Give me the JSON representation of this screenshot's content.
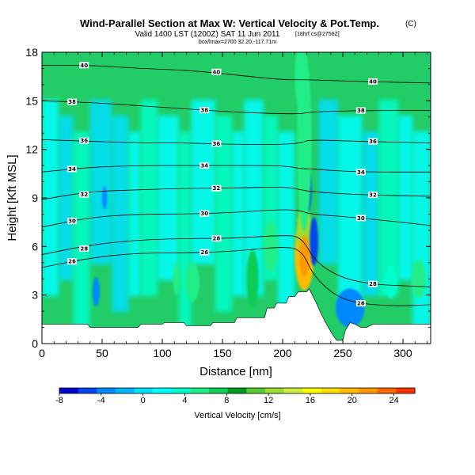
{
  "chart_data": {
    "type": "heatmap",
    "title": "Wind-Parallel Section at Max W: Vertical Velocity & Pot.Temp.",
    "title_mark": "(C)",
    "subtitle": "Valid 1400 LST (1200Z) SAT 11 Jun 2011",
    "subtitle_mark": "[18hrf cs@2756Z]",
    "subtitle2": "box/lmax=2700 32.20,-117.71m",
    "xlabel": "Distance [nm]",
    "ylabel": "Height [Kft MSL]",
    "xlim": [
      0,
      323
    ],
    "ylim": [
      0,
      18
    ],
    "xticks": [
      0,
      50,
      100,
      150,
      200,
      250,
      300
    ],
    "yticks": [
      0,
      3,
      6,
      9,
      12,
      15,
      18
    ],
    "colorbar": {
      "label": "Vertical Velocity [cm/s]",
      "min": -8,
      "max": 26,
      "step": 2,
      "ticks": [
        -8,
        -4,
        0,
        4,
        8,
        12,
        16,
        20,
        24
      ],
      "colors": [
        "#0000cc",
        "#0044ee",
        "#0088ff",
        "#00b4ff",
        "#00e0ff",
        "#00ffff",
        "#00ffcc",
        "#22ee88",
        "#11cc55",
        "#009922",
        "#55cc33",
        "#99dd33",
        "#ccee44",
        "#ffff00",
        "#ffdd00",
        "#ffbb00",
        "#ff9900",
        "#ff6600",
        "#ff3300"
      ]
    },
    "theta_contours": [
      {
        "value": 26,
        "points": [
          [
            0,
            4.7
          ],
          [
            40,
            5.3
          ],
          [
            80,
            5.6
          ],
          [
            120,
            5.6
          ],
          [
            160,
            5.7
          ],
          [
            200,
            6.0
          ],
          [
            216,
            5.8
          ],
          [
            226,
            4.1
          ],
          [
            250,
            2.6
          ],
          [
            290,
            2.3
          ],
          [
            323,
            2.4
          ]
        ]
      },
      {
        "value": 28,
        "points": [
          [
            0,
            5.5
          ],
          [
            40,
            6.1
          ],
          [
            80,
            6.4
          ],
          [
            120,
            6.5
          ],
          [
            160,
            6.5
          ],
          [
            200,
            6.7
          ],
          [
            216,
            6.6
          ],
          [
            228,
            4.9
          ],
          [
            260,
            3.7
          ],
          [
            323,
            3.5
          ]
        ]
      },
      {
        "value": 30,
        "points": [
          [
            0,
            7.2
          ],
          [
            40,
            7.8
          ],
          [
            80,
            8.0
          ],
          [
            120,
            8.0
          ],
          [
            160,
            8.1
          ],
          [
            200,
            8.3
          ],
          [
            216,
            8.2
          ],
          [
            222,
            8.0
          ],
          [
            260,
            7.8
          ],
          [
            323,
            7.3
          ]
        ]
      },
      {
        "value": 32,
        "points": [
          [
            0,
            8.9
          ],
          [
            40,
            9.4
          ],
          [
            80,
            9.5
          ],
          [
            120,
            9.6
          ],
          [
            160,
            9.6
          ],
          [
            200,
            9.7
          ],
          [
            216,
            9.5
          ],
          [
            222,
            9.4
          ],
          [
            260,
            9.2
          ],
          [
            323,
            9.1
          ]
        ]
      },
      {
        "value": 34,
        "points": [
          [
            0,
            10.6
          ],
          [
            40,
            10.9
          ],
          [
            80,
            11.0
          ],
          [
            120,
            11.0
          ],
          [
            160,
            11.0
          ],
          [
            200,
            11.0
          ],
          [
            216,
            10.8
          ],
          [
            222,
            10.8
          ],
          [
            260,
            10.6
          ],
          [
            323,
            10.6
          ]
        ]
      },
      {
        "value": 36,
        "points": [
          [
            0,
            12.6
          ],
          [
            40,
            12.5
          ],
          [
            80,
            12.4
          ],
          [
            120,
            12.4
          ],
          [
            160,
            12.3
          ],
          [
            200,
            12.3
          ],
          [
            216,
            12.4
          ],
          [
            222,
            12.6
          ],
          [
            260,
            12.5
          ],
          [
            323,
            12.4
          ]
        ]
      },
      {
        "value": 38,
        "points": [
          [
            0,
            15.0
          ],
          [
            40,
            14.9
          ],
          [
            80,
            14.7
          ],
          [
            120,
            14.5
          ],
          [
            160,
            14.3
          ],
          [
            200,
            14.2
          ],
          [
            216,
            14.2
          ],
          [
            222,
            14.3
          ],
          [
            260,
            14.4
          ],
          [
            323,
            14.4
          ]
        ]
      },
      {
        "value": 40,
        "points": [
          [
            0,
            17.2
          ],
          [
            40,
            17.2
          ],
          [
            80,
            17.0
          ],
          [
            120,
            16.9
          ],
          [
            160,
            16.6
          ],
          [
            200,
            16.3
          ],
          [
            216,
            16.3
          ],
          [
            222,
            16.3
          ],
          [
            260,
            16.2
          ],
          [
            323,
            16.1
          ]
        ]
      }
    ],
    "terrain": [
      [
        0,
        1.2
      ],
      [
        38,
        1.2
      ],
      [
        40,
        1.0
      ],
      [
        80,
        1.0
      ],
      [
        82,
        1.2
      ],
      [
        100,
        1.2
      ],
      [
        102,
        1.3
      ],
      [
        118,
        1.3
      ],
      [
        120,
        1.1
      ],
      [
        140,
        1.1
      ],
      [
        142,
        1.3
      ],
      [
        160,
        1.3
      ],
      [
        162,
        1.6
      ],
      [
        185,
        1.6
      ],
      [
        187,
        2.2
      ],
      [
        193,
        2.2
      ],
      [
        195,
        2.5
      ],
      [
        203,
        2.5
      ],
      [
        205,
        2.9
      ],
      [
        210,
        2.9
      ],
      [
        213,
        3.2
      ],
      [
        220,
        3.2
      ],
      [
        222,
        3.4
      ],
      [
        228,
        2.5
      ],
      [
        231,
        2.0
      ],
      [
        235,
        1.4
      ],
      [
        238,
        1.0
      ],
      [
        242,
        0.5
      ],
      [
        245,
        0.2
      ],
      [
        250,
        0.2
      ],
      [
        252,
        0.8
      ],
      [
        256,
        1.3
      ],
      [
        260,
        1.2
      ],
      [
        265,
        1.0
      ],
      [
        270,
        1.0
      ],
      [
        275,
        1.2
      ],
      [
        323,
        1.2
      ]
    ],
    "velocity_features": [
      {
        "x": 218,
        "y": 5.5,
        "rx": 8,
        "ry": 2.2,
        "value": 22
      },
      {
        "x": 218,
        "y": 7.0,
        "rx": 6,
        "ry": 1.6,
        "value": 14
      },
      {
        "x": 220,
        "y": 9.5,
        "rx": 4,
        "ry": 1.5,
        "value": -6
      },
      {
        "x": 226,
        "y": 6.3,
        "rx": 3.5,
        "ry": 1.5,
        "value": -6
      },
      {
        "x": 218,
        "y": 12.5,
        "rx": 6,
        "ry": 5.5,
        "value": 6
      },
      {
        "x": 215,
        "y": 16.5,
        "rx": 5,
        "ry": 2.0,
        "value": 6
      },
      {
        "x": 256,
        "y": 2.2,
        "rx": 12,
        "ry": 1.2,
        "value": -4
      },
      {
        "x": 45,
        "y": 3.2,
        "rx": 3,
        "ry": 0.9,
        "value": -4
      },
      {
        "x": 52,
        "y": 9.0,
        "rx": 2,
        "ry": 0.7,
        "value": -4
      },
      {
        "x": 175,
        "y": 4.0,
        "rx": 5,
        "ry": 1.8,
        "value": 8
      },
      {
        "x": 112,
        "y": 4.0,
        "rx": 3,
        "ry": 1.0,
        "value": 6
      },
      {
        "x": 125,
        "y": 3.8,
        "rx": 6,
        "ry": 1.2,
        "value": 6
      },
      {
        "x": 190,
        "y": 6.0,
        "rx": 6,
        "ry": 1.6,
        "value": 6
      },
      {
        "x": 313,
        "y": 4.0,
        "rx": 6,
        "ry": 1.2,
        "value": 6
      },
      {
        "x": 290,
        "y": 3.8,
        "rx": 5,
        "ry": 1.0,
        "value": 4
      }
    ]
  }
}
